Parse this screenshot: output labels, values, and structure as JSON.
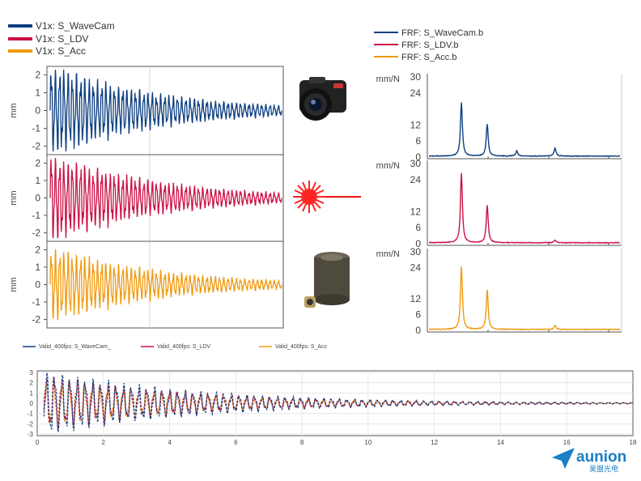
{
  "colors": {
    "wavecam": "#0d3f80",
    "ldv": "#cc1144",
    "acc": "#f09a10",
    "axis": "#555555",
    "grid": "#dddddd"
  },
  "legend_top_left": [
    "V1x: S_WaveCam",
    "V1x: S_LDV",
    "V1x: S_Acc"
  ],
  "legend_top_right": [
    "FRF: S_WaveCam.b",
    "FRF: S_LDV.b",
    "FRF: S_Acc.b"
  ],
  "legend_bottom": [
    "Valid_400fps: S_WaveCam_",
    "Valid_400fps: S_LDV",
    "Valid_400fps: S_Acc"
  ],
  "icons": [
    "camera-icon",
    "laser-icon",
    "accelerometer-icon"
  ],
  "logo": {
    "text": "aunion",
    "sub": "昊盟光电"
  },
  "chart_data": [
    {
      "type": "line",
      "panel": "time-wavecam",
      "ylabel": "mm",
      "yticks": [
        "2",
        "1",
        "0",
        "-1",
        "-2"
      ],
      "ylim": [
        -2.3,
        2.3
      ],
      "series": [
        {
          "name": "V1x: S_WaveCam",
          "color": "#0d3f80",
          "peak": 2.4,
          "decay": 2.2,
          "cycles": 55
        }
      ]
    },
    {
      "type": "line",
      "panel": "time-ldv",
      "ylabel": "mm",
      "yticks": [
        "2",
        "1",
        "0",
        "-1",
        "-2"
      ],
      "ylim": [
        -2.3,
        2.3
      ],
      "series": [
        {
          "name": "V1x: S_LDV",
          "color": "#cc1144",
          "peak": 2.4,
          "decay": 2.2,
          "cycles": 55
        }
      ]
    },
    {
      "type": "line",
      "panel": "time-acc",
      "ylabel": "mm",
      "yticks": [
        "2",
        "1",
        "0",
        "-1",
        "-2"
      ],
      "ylim": [
        -2.3,
        2.3
      ],
      "series": [
        {
          "name": "V1x: S_Acc",
          "color": "#f09a10",
          "peak": 2.0,
          "decay": 2.2,
          "cycles": 55
        }
      ]
    },
    {
      "type": "line",
      "panel": "frf-wavecam",
      "ylabel": "mm/N",
      "yticks": [
        "30",
        "24",
        "12",
        "6",
        "0"
      ],
      "ylim": [
        0,
        30
      ],
      "series": [
        {
          "name": "FRF: S_WaveCam.b",
          "color": "#0d3f80",
          "peaks": [
            {
              "x": 0.17,
              "y": 20
            },
            {
              "x": 0.305,
              "y": 12
            },
            {
              "x": 0.46,
              "y": 2
            },
            {
              "x": 0.66,
              "y": 3
            }
          ]
        }
      ]
    },
    {
      "type": "line",
      "panel": "frf-ldv",
      "ylabel": "mm/N",
      "yticks": [
        "30",
        "24",
        "12",
        "6",
        "0"
      ],
      "ylim": [
        0,
        30
      ],
      "series": [
        {
          "name": "FRF: S_LDV.b",
          "color": "#cc1144",
          "peaks": [
            {
              "x": 0.17,
              "y": 26
            },
            {
              "x": 0.305,
              "y": 14
            },
            {
              "x": 0.66,
              "y": 1
            }
          ]
        }
      ]
    },
    {
      "type": "line",
      "panel": "frf-acc",
      "ylabel": "mm/N",
      "yticks": [
        "30",
        "24",
        "12",
        "6",
        "0"
      ],
      "ylim": [
        0,
        30
      ],
      "series": [
        {
          "name": "FRF: S_Acc.b",
          "color": "#f09a10",
          "peaks": [
            {
              "x": 0.17,
              "y": 24
            },
            {
              "x": 0.305,
              "y": 15
            },
            {
              "x": 0.66,
              "y": 1.5
            }
          ]
        }
      ]
    },
    {
      "type": "line",
      "panel": "overlay",
      "xticks": [
        "0",
        "2",
        "4",
        "6",
        "8",
        "10",
        "12",
        "14",
        "16",
        "18"
      ],
      "xlim": [
        0,
        18
      ],
      "yticks": [
        "3",
        "2",
        "1",
        "0",
        "-1",
        "-2",
        "-3"
      ],
      "ylim": [
        -3,
        3
      ],
      "series": [
        {
          "name": "Valid_400fps: S_WaveCam_",
          "color": "#0d3f80",
          "peak": 2.9,
          "decay": 0.22
        },
        {
          "name": "Valid_400fps: S_LDV",
          "color": "#cc1144",
          "peak": 2.5,
          "decay": 0.22
        },
        {
          "name": "Valid_400fps: S_Acc",
          "color": "#f09a10",
          "peak": 2.2,
          "decay": 0.22
        }
      ]
    }
  ]
}
